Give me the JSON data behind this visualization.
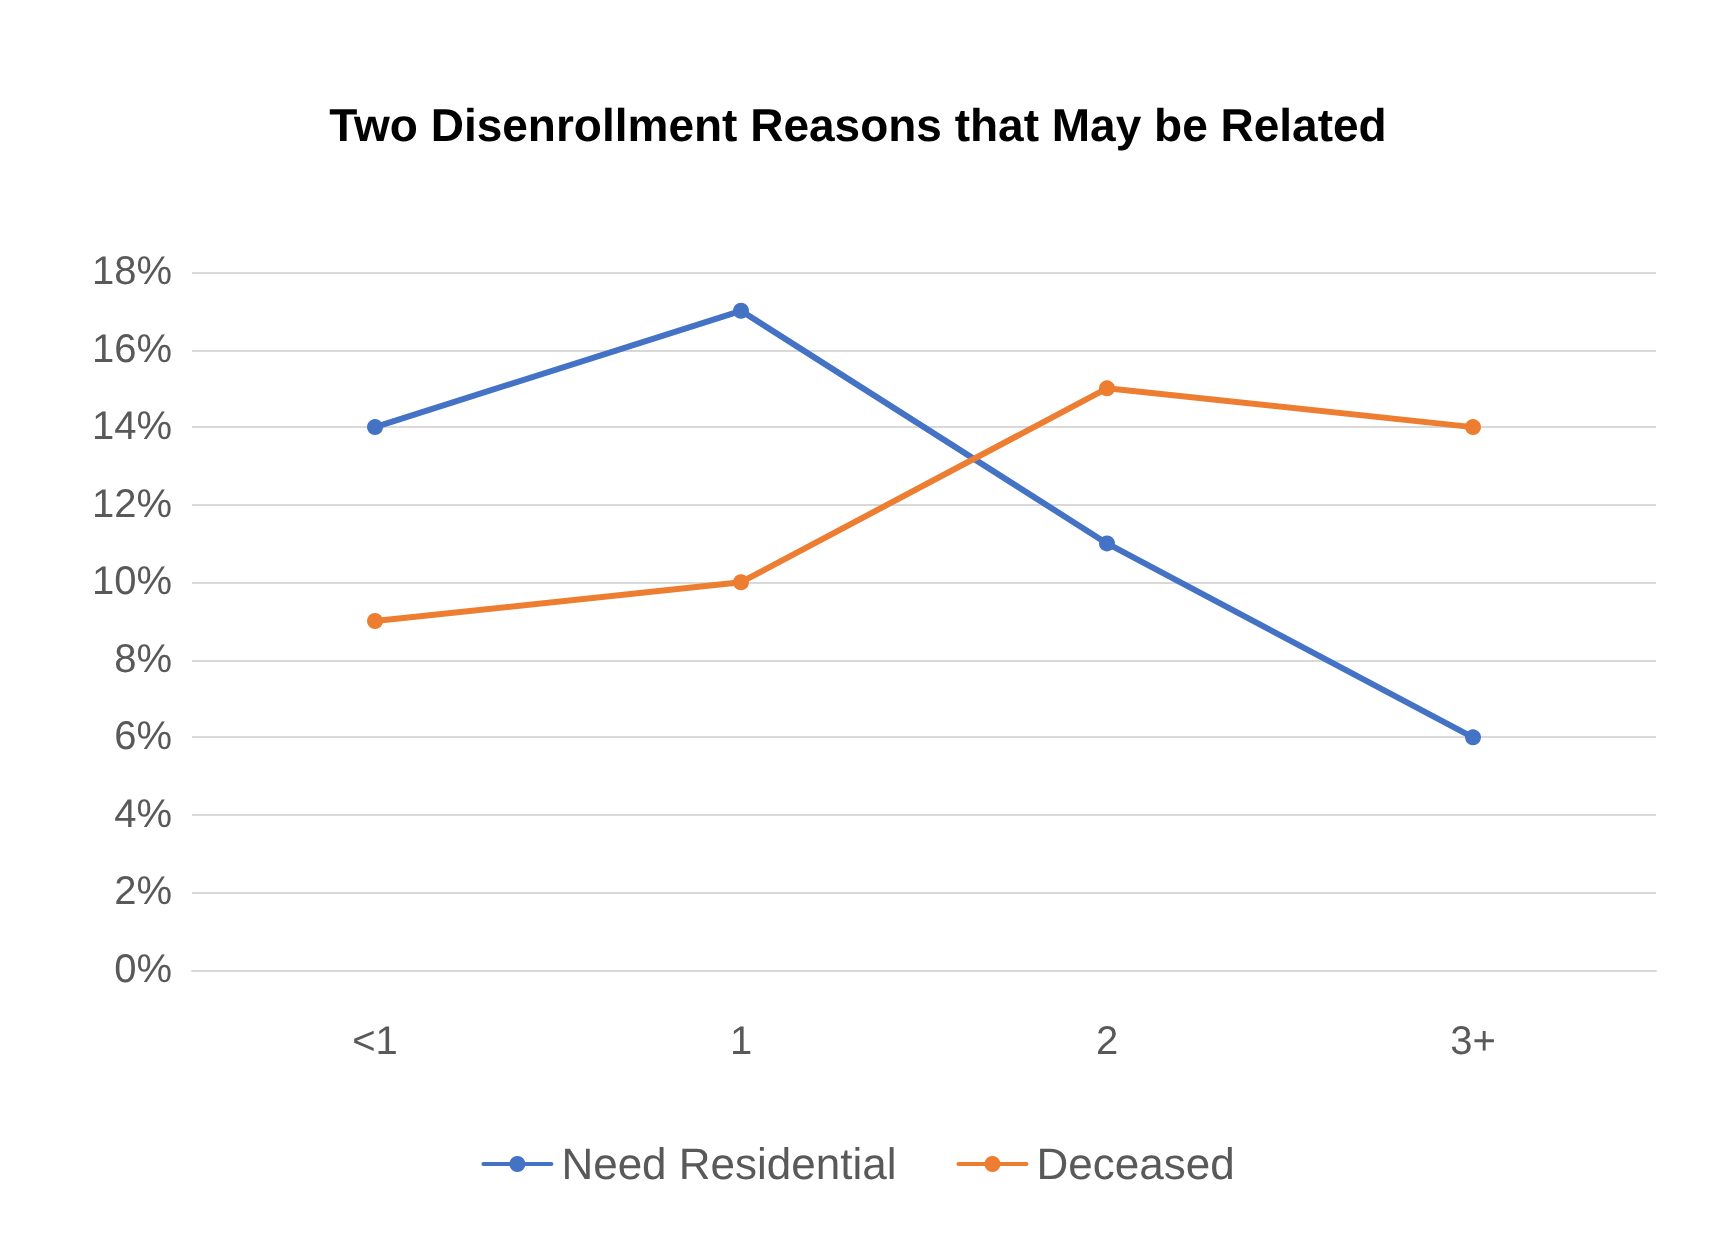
{
  "chart_data": {
    "type": "line",
    "title": "Two Disenrollment Reasons that May be Related",
    "categories": [
      "<1",
      "1",
      "2",
      "3+"
    ],
    "series": [
      {
        "name": "Need Residential",
        "color": "#4472c4",
        "values": [
          14,
          17,
          11,
          6
        ]
      },
      {
        "name": "Deceased",
        "color": "#ed7d31",
        "values": [
          9,
          10,
          15,
          14
        ]
      }
    ],
    "ylim": [
      0,
      18
    ],
    "yticks": [
      {
        "value": 0,
        "label": "0%"
      },
      {
        "value": 2,
        "label": "2%"
      },
      {
        "value": 4,
        "label": "4%"
      },
      {
        "value": 6,
        "label": "6%"
      },
      {
        "value": 8,
        "label": "8%"
      },
      {
        "value": 10,
        "label": "10%"
      },
      {
        "value": 12,
        "label": "12%"
      },
      {
        "value": 14,
        "label": "14%"
      },
      {
        "value": 16,
        "label": "16%"
      },
      {
        "value": 18,
        "label": "18%"
      }
    ],
    "grid": "y",
    "legend": "bottom",
    "marker": "circle",
    "line_style": "solid"
  }
}
